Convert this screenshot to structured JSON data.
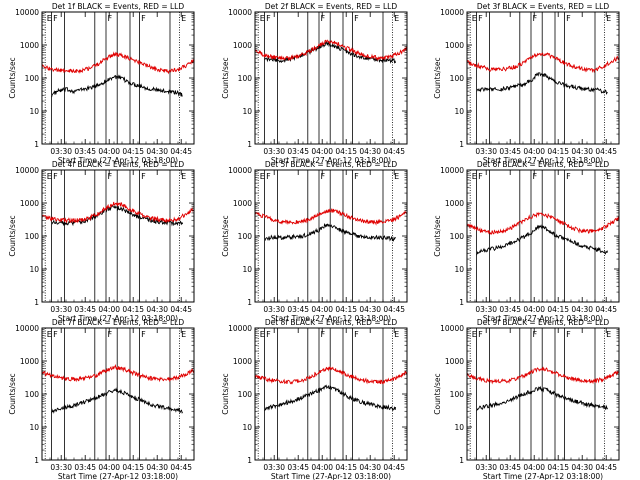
{
  "figure": {
    "xlabel": "Start Time (27-Apr-12 03:18:00)",
    "ylabel": "Counts/sec",
    "y_ticks": [
      "1",
      "10",
      "100",
      "1000",
      "10000"
    ],
    "x_ticks": [
      "03:30",
      "03:45",
      "04:00",
      "04:15",
      "04:30",
      "04:45"
    ],
    "marker_labels": [
      "E",
      "F",
      "F",
      "E"
    ],
    "colors": {
      "events": "#000000",
      "lld": "#e00000"
    }
  },
  "chart_data": [
    {
      "type": "line",
      "title": "Det 1f BLACK = Events, RED = LLD",
      "x_unit": "minutes after 03:18",
      "xlim": [
        0,
        95
      ],
      "ylim": [
        1,
        10000
      ],
      "log_y": true,
      "series": [
        {
          "name": "Events",
          "color": "#000000",
          "x": [
            6,
            10,
            15,
            20,
            25,
            30,
            35,
            40,
            45,
            50,
            55,
            60,
            65,
            70,
            75,
            80,
            85,
            88
          ],
          "values": [
            30,
            40,
            45,
            40,
            45,
            50,
            60,
            80,
            110,
            95,
            70,
            60,
            50,
            45,
            40,
            40,
            35,
            30
          ]
        },
        {
          "name": "LLD",
          "color": "#e00000",
          "x": [
            0,
            5,
            10,
            15,
            20,
            25,
            30,
            35,
            40,
            45,
            50,
            55,
            60,
            65,
            70,
            75,
            80,
            85,
            90,
            95
          ],
          "values": [
            220,
            190,
            170,
            160,
            160,
            170,
            200,
            260,
            380,
            520,
            480,
            380,
            300,
            240,
            190,
            170,
            160,
            180,
            240,
            330
          ]
        }
      ]
    },
    {
      "type": "line",
      "title": "Det 2f BLACK = Events, RED = LLD",
      "x_unit": "minutes after 03:18",
      "xlim": [
        0,
        95
      ],
      "ylim": [
        1,
        10000
      ],
      "log_y": true,
      "series": [
        {
          "name": "Events",
          "color": "#000000",
          "x": [
            6,
            10,
            15,
            20,
            25,
            30,
            35,
            40,
            45,
            50,
            55,
            60,
            65,
            70,
            75,
            80,
            85,
            88
          ],
          "values": [
            400,
            350,
            340,
            360,
            420,
            500,
            650,
            850,
            1100,
            900,
            700,
            550,
            450,
            400,
            370,
            350,
            340,
            330
          ]
        },
        {
          "name": "LLD",
          "color": "#e00000",
          "x": [
            0,
            5,
            10,
            15,
            20,
            25,
            30,
            35,
            40,
            45,
            50,
            55,
            60,
            65,
            70,
            75,
            80,
            85,
            90,
            95
          ],
          "values": [
            650,
            520,
            440,
            400,
            400,
            440,
            520,
            680,
            950,
            1300,
            1200,
            900,
            700,
            560,
            470,
            420,
            400,
            430,
            560,
            750
          ]
        }
      ]
    },
    {
      "type": "line",
      "title": "Det 3f BLACK = Events, RED = LLD",
      "x_unit": "minutes after 03:18",
      "xlim": [
        0,
        95
      ],
      "ylim": [
        1,
        10000
      ],
      "log_y": true,
      "series": [
        {
          "name": "Events",
          "color": "#000000",
          "x": [
            6,
            10,
            15,
            20,
            25,
            30,
            35,
            40,
            45,
            50,
            55,
            60,
            65,
            70,
            75,
            80,
            85,
            88
          ],
          "values": [
            45,
            45,
            45,
            45,
            50,
            55,
            65,
            80,
            140,
            110,
            80,
            65,
            55,
            50,
            45,
            45,
            40,
            35
          ]
        },
        {
          "name": "LLD",
          "color": "#e00000",
          "x": [
            0,
            5,
            10,
            15,
            20,
            25,
            30,
            35,
            40,
            45,
            50,
            55,
            60,
            65,
            70,
            75,
            80,
            85,
            90,
            95
          ],
          "values": [
            320,
            250,
            210,
            180,
            180,
            190,
            220,
            280,
            400,
            550,
            520,
            400,
            300,
            240,
            200,
            180,
            180,
            220,
            300,
            420
          ]
        }
      ]
    },
    {
      "type": "line",
      "title": "Det 4f BLACK = Events, RED = LLD",
      "x_unit": "minutes after 03:18",
      "xlim": [
        0,
        95
      ],
      "ylim": [
        1,
        10000
      ],
      "log_y": true,
      "series": [
        {
          "name": "Events",
          "color": "#000000",
          "x": [
            6,
            10,
            15,
            20,
            25,
            30,
            35,
            40,
            45,
            50,
            55,
            60,
            65,
            70,
            75,
            80,
            85,
            88
          ],
          "values": [
            260,
            260,
            250,
            250,
            270,
            320,
            420,
            600,
            800,
            650,
            480,
            380,
            320,
            280,
            260,
            250,
            240,
            240
          ]
        },
        {
          "name": "LLD",
          "color": "#e00000",
          "x": [
            0,
            5,
            10,
            15,
            20,
            25,
            30,
            35,
            40,
            45,
            50,
            55,
            60,
            65,
            70,
            75,
            80,
            85,
            90,
            95
          ],
          "values": [
            400,
            340,
            310,
            300,
            300,
            310,
            360,
            480,
            700,
            950,
            880,
            650,
            480,
            380,
            330,
            310,
            300,
            330,
            450,
            650
          ]
        }
      ]
    },
    {
      "type": "line",
      "title": "Det 5f BLACK = Events, RED = LLD",
      "x_unit": "minutes after 03:18",
      "xlim": [
        0,
        95
      ],
      "ylim": [
        1,
        10000
      ],
      "log_y": true,
      "series": [
        {
          "name": "Events",
          "color": "#000000",
          "x": [
            6,
            10,
            15,
            20,
            25,
            30,
            35,
            40,
            45,
            50,
            55,
            60,
            65,
            70,
            75,
            80,
            85,
            88
          ],
          "values": [
            85,
            90,
            90,
            90,
            95,
            100,
            120,
            150,
            220,
            180,
            140,
            115,
            100,
            95,
            90,
            90,
            85,
            80
          ]
        },
        {
          "name": "LLD",
          "color": "#e00000",
          "x": [
            0,
            5,
            10,
            15,
            20,
            25,
            30,
            35,
            40,
            45,
            50,
            55,
            60,
            65,
            70,
            75,
            80,
            85,
            90,
            95
          ],
          "values": [
            500,
            400,
            330,
            280,
            260,
            260,
            280,
            330,
            450,
            600,
            580,
            460,
            360,
            300,
            270,
            260,
            260,
            290,
            380,
            520
          ]
        }
      ]
    },
    {
      "type": "line",
      "title": "Det 6f BLACK = Events, RED = LLD",
      "x_unit": "minutes after 03:18",
      "xlim": [
        0,
        95
      ],
      "ylim": [
        1,
        10000
      ],
      "log_y": true,
      "series": [
        {
          "name": "Events",
          "color": "#000000",
          "x": [
            6,
            10,
            15,
            20,
            25,
            30,
            35,
            40,
            45,
            50,
            55,
            60,
            65,
            70,
            75,
            80,
            85,
            88
          ],
          "values": [
            30,
            35,
            40,
            45,
            55,
            70,
            90,
            120,
            200,
            160,
            110,
            85,
            70,
            55,
            45,
            40,
            35,
            30
          ]
        },
        {
          "name": "LLD",
          "color": "#e00000",
          "x": [
            0,
            5,
            10,
            15,
            20,
            25,
            30,
            35,
            40,
            45,
            50,
            55,
            60,
            65,
            70,
            75,
            80,
            85,
            90,
            95
          ],
          "values": [
            220,
            170,
            140,
            130,
            130,
            150,
            200,
            280,
            380,
            450,
            420,
            320,
            240,
            180,
            150,
            140,
            140,
            170,
            240,
            340
          ]
        }
      ]
    },
    {
      "type": "line",
      "title": "Det 7f BLACK = Events, RED = LLD",
      "x_unit": "minutes after 03:18",
      "xlim": [
        0,
        95
      ],
      "ylim": [
        1,
        10000
      ],
      "log_y": true,
      "series": [
        {
          "name": "Events",
          "color": "#000000",
          "x": [
            6,
            10,
            15,
            20,
            25,
            30,
            35,
            40,
            45,
            50,
            55,
            60,
            65,
            70,
            75,
            80,
            85,
            88
          ],
          "values": [
            30,
            35,
            40,
            45,
            55,
            65,
            80,
            100,
            130,
            115,
            90,
            70,
            55,
            45,
            40,
            35,
            32,
            30
          ]
        },
        {
          "name": "LLD",
          "color": "#e00000",
          "x": [
            0,
            5,
            10,
            15,
            20,
            25,
            30,
            35,
            40,
            45,
            50,
            55,
            60,
            65,
            70,
            75,
            80,
            85,
            90,
            95
          ],
          "values": [
            450,
            370,
            320,
            290,
            280,
            290,
            320,
            380,
            500,
            650,
            600,
            480,
            380,
            320,
            290,
            280,
            280,
            310,
            400,
            550
          ]
        }
      ]
    },
    {
      "type": "line",
      "title": "Det 8f BLACK = Events, RED = LLD",
      "x_unit": "minutes after 03:18",
      "xlim": [
        0,
        95
      ],
      "ylim": [
        1,
        10000
      ],
      "log_y": true,
      "series": [
        {
          "name": "Events",
          "color": "#000000",
          "x": [
            6,
            10,
            15,
            20,
            25,
            30,
            35,
            40,
            45,
            50,
            55,
            60,
            65,
            70,
            75,
            80,
            85,
            88
          ],
          "values": [
            35,
            40,
            45,
            55,
            65,
            80,
            100,
            130,
            170,
            140,
            100,
            75,
            60,
            50,
            45,
            40,
            38,
            35
          ]
        },
        {
          "name": "LLD",
          "color": "#e00000",
          "x": [
            0,
            5,
            10,
            15,
            20,
            25,
            30,
            35,
            40,
            45,
            50,
            55,
            60,
            65,
            70,
            75,
            80,
            85,
            90,
            95
          ],
          "values": [
            360,
            300,
            260,
            240,
            230,
            240,
            270,
            330,
            450,
            600,
            560,
            440,
            340,
            280,
            250,
            230,
            230,
            260,
            340,
            460
          ]
        }
      ]
    },
    {
      "type": "line",
      "title": "Det 9f BLACK = Events, RED = LLD",
      "x_unit": "minutes after 03:18",
      "xlim": [
        0,
        95
      ],
      "ylim": [
        1,
        10000
      ],
      "log_y": true,
      "series": [
        {
          "name": "Events",
          "color": "#000000",
          "x": [
            6,
            10,
            15,
            20,
            25,
            30,
            35,
            40,
            45,
            50,
            55,
            60,
            65,
            70,
            75,
            80,
            85,
            88
          ],
          "values": [
            35,
            40,
            45,
            50,
            60,
            75,
            95,
            120,
            150,
            130,
            100,
            80,
            65,
            55,
            48,
            44,
            40,
            36
          ]
        },
        {
          "name": "LLD",
          "color": "#e00000",
          "x": [
            0,
            5,
            10,
            15,
            20,
            25,
            30,
            35,
            40,
            45,
            50,
            55,
            60,
            65,
            70,
            75,
            80,
            85,
            90,
            95
          ],
          "values": [
            380,
            310,
            270,
            250,
            240,
            250,
            280,
            340,
            460,
            580,
            550,
            440,
            340,
            290,
            260,
            250,
            250,
            280,
            360,
            480
          ]
        }
      ]
    }
  ],
  "markers": [
    {
      "x": 2,
      "label": "E",
      "style": "dotted"
    },
    {
      "x": 6,
      "label": "F",
      "style": "solid"
    },
    {
      "x": 14,
      "label": "",
      "style": "solid"
    },
    {
      "x": 33,
      "label": "",
      "style": "solid"
    },
    {
      "x": 40,
      "label": "F",
      "style": "solid"
    },
    {
      "x": 47,
      "label": "",
      "style": "solid"
    },
    {
      "x": 55,
      "label": "",
      "style": "solid"
    },
    {
      "x": 61,
      "label": "F",
      "style": "solid"
    },
    {
      "x": 80,
      "label": "",
      "style": "solid"
    },
    {
      "x": 86,
      "label": "E",
      "style": "dotted"
    }
  ]
}
